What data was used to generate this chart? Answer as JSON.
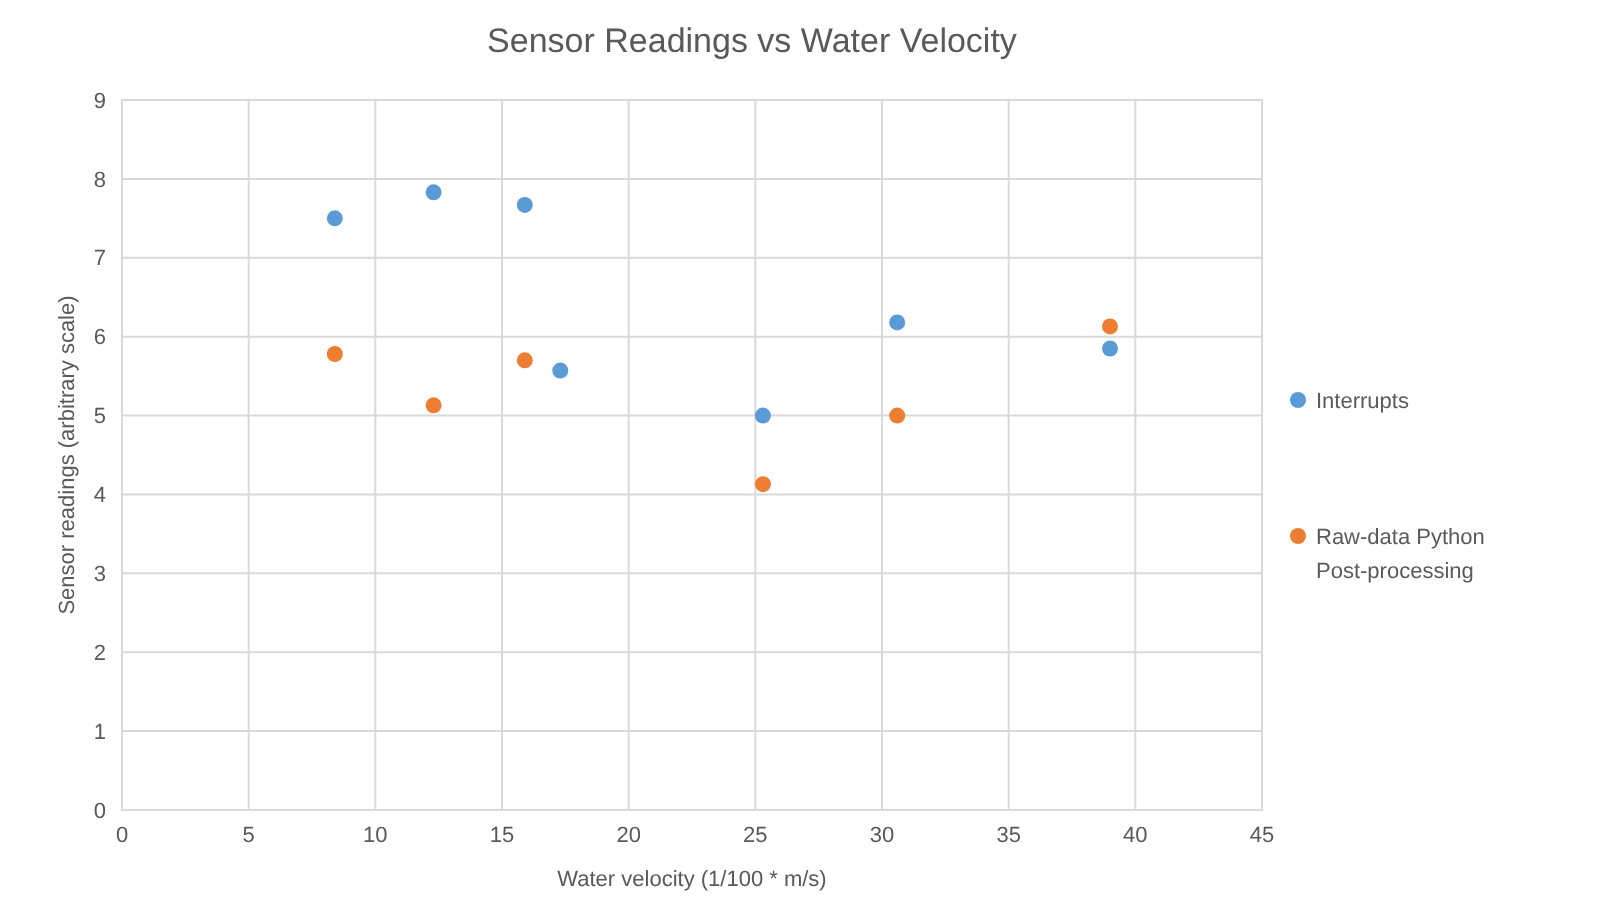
{
  "chart_data": {
    "type": "scatter",
    "title": "Sensor Readings vs Water Velocity",
    "xlabel": "Water velocity (1/100 * m/s)",
    "ylabel": "Sensor readings (arbitrary scale)",
    "xlim": [
      0,
      45
    ],
    "xticks": [
      0,
      5,
      10,
      15,
      20,
      25,
      30,
      35,
      40,
      45
    ],
    "ylim": [
      0,
      9
    ],
    "yticks": [
      0,
      1,
      2,
      3,
      4,
      5,
      6,
      7,
      8,
      9
    ],
    "grid": true,
    "legend": "right",
    "marker": "circle",
    "series": [
      {
        "name": "Interrupts",
        "color": "#5b9bd5",
        "x": [
          8.4,
          12.3,
          15.9,
          17.3,
          25.3,
          30.6,
          39.0
        ],
        "values": [
          7.5,
          7.83,
          7.67,
          5.57,
          5.0,
          6.18,
          5.85
        ]
      },
      {
        "name": "Raw-data Python Post-processing",
        "color": "#ed7d31",
        "x": [
          8.4,
          12.3,
          15.9,
          25.3,
          30.6,
          39.0
        ],
        "values": [
          5.78,
          5.13,
          5.7,
          4.13,
          5.0,
          6.13
        ]
      }
    ]
  }
}
